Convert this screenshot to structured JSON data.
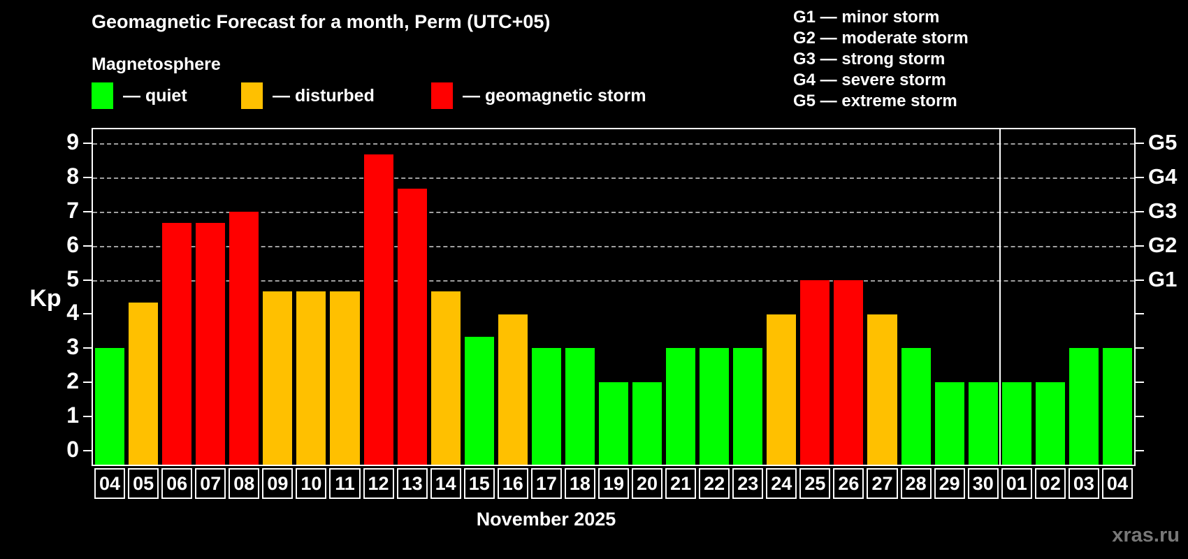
{
  "page": {
    "title": "Geomagnetic Forecast for a month, Perm (UTC+05)",
    "subtitle": "Magnetosphere",
    "ylabel": "Kp",
    "xlabel": "November 2025",
    "watermark": "xras.ru"
  },
  "colors": {
    "quiet": "#00ff00",
    "disturbed": "#ffc000",
    "storm": "#ff0000",
    "background": "#000000",
    "frame": "#ffffff",
    "gridline": "#a0a0a0",
    "watermark_gray": "#787878"
  },
  "legend": {
    "quiet": "— quiet",
    "disturbed": "— disturbed",
    "storm": "— geomagnetic storm"
  },
  "g_legend": {
    "g1": "G1 — minor storm",
    "g2": "G2 — moderate storm",
    "g3": "G3 — strong storm",
    "g4": "G4 — severe storm",
    "g5": "G5 — extreme storm"
  },
  "chart_data": {
    "type": "bar",
    "title": "Geomagnetic Forecast for a month, Perm (UTC+05)",
    "xlabel": "November 2025",
    "ylabel": "Kp",
    "ylim": [
      0,
      9
    ],
    "axis_span": [
      -0.4,
      9.4
    ],
    "grid": "dashed horizontal at G-storm levels",
    "gridlines_at": [
      5,
      6,
      7,
      8,
      9
    ],
    "yticks": [
      0,
      1,
      2,
      3,
      4,
      5,
      6,
      7,
      8,
      9
    ],
    "right_axis": [
      {
        "value": 5,
        "label": "G1"
      },
      {
        "value": 6,
        "label": "G2"
      },
      {
        "value": 7,
        "label": "G3"
      },
      {
        "value": 8,
        "label": "G4"
      },
      {
        "value": 9,
        "label": "G5"
      }
    ],
    "categories": [
      "04",
      "05",
      "06",
      "07",
      "08",
      "09",
      "10",
      "11",
      "12",
      "13",
      "14",
      "15",
      "16",
      "17",
      "18",
      "19",
      "20",
      "21",
      "22",
      "23",
      "24",
      "25",
      "26",
      "27",
      "28",
      "29",
      "30",
      "01",
      "02",
      "03",
      "04"
    ],
    "values": [
      3,
      4.33,
      6.67,
      6.67,
      7,
      4.67,
      4.67,
      4.67,
      8.67,
      7.67,
      4.67,
      3.33,
      4,
      3,
      3,
      2,
      2,
      3,
      3,
      3,
      4,
      5,
      5,
      4,
      3,
      2,
      2,
      2,
      2,
      3,
      3
    ],
    "statuses": [
      "quiet",
      "disturbed",
      "storm",
      "storm",
      "storm",
      "disturbed",
      "disturbed",
      "disturbed",
      "storm",
      "storm",
      "disturbed",
      "quiet",
      "disturbed",
      "quiet",
      "quiet",
      "quiet",
      "quiet",
      "quiet",
      "quiet",
      "quiet",
      "disturbed",
      "storm",
      "storm",
      "disturbed",
      "quiet",
      "quiet",
      "quiet",
      "quiet",
      "quiet",
      "quiet",
      "quiet"
    ],
    "month_separator_after_index": 26,
    "legend_position": "top-left"
  }
}
